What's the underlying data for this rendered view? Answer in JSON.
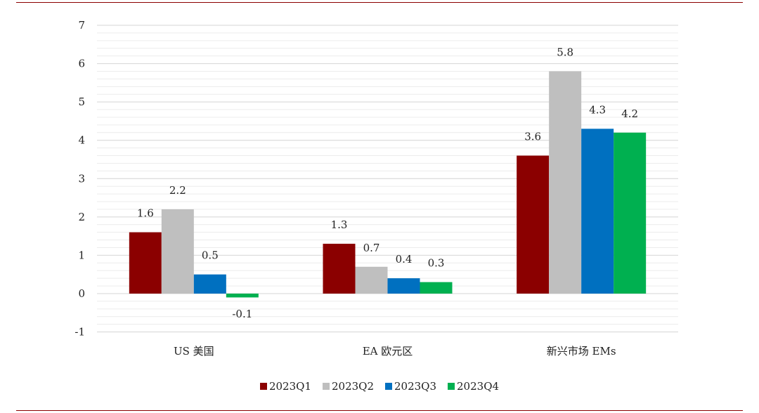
{
  "chart_data": {
    "type": "bar",
    "categories": [
      "US 美国",
      "EA 欧元区",
      "新兴市场 EMs"
    ],
    "series": [
      {
        "name": "2023Q1",
        "values": [
          1.6,
          1.3,
          3.6
        ],
        "labels": [
          "1.6",
          "1.3",
          "3.6"
        ],
        "color": "#8b0000"
      },
      {
        "name": "2023Q2",
        "values": [
          2.2,
          0.7,
          5.8
        ],
        "labels": [
          "2.2",
          "0.7",
          "5.8"
        ],
        "color": "#bfbfbf"
      },
      {
        "name": "2023Q3",
        "values": [
          0.5,
          0.4,
          4.3
        ],
        "labels": [
          "0.5",
          "0.4",
          "4.3"
        ],
        "color": "#0070c0"
      },
      {
        "name": "2023Q4",
        "values": [
          -0.1,
          0.3,
          4.2
        ],
        "labels": [
          "-0.1",
          "0.3",
          "4.2"
        ],
        "color": "#00b050"
      }
    ],
    "ylim": [
      -1,
      7
    ],
    "yticks": [
      "-1",
      "0",
      "1",
      "2",
      "3",
      "4",
      "5",
      "6",
      "7"
    ],
    "grid": true,
    "legend_position": "bottom",
    "title": "",
    "xlabel": "",
    "ylabel": ""
  }
}
